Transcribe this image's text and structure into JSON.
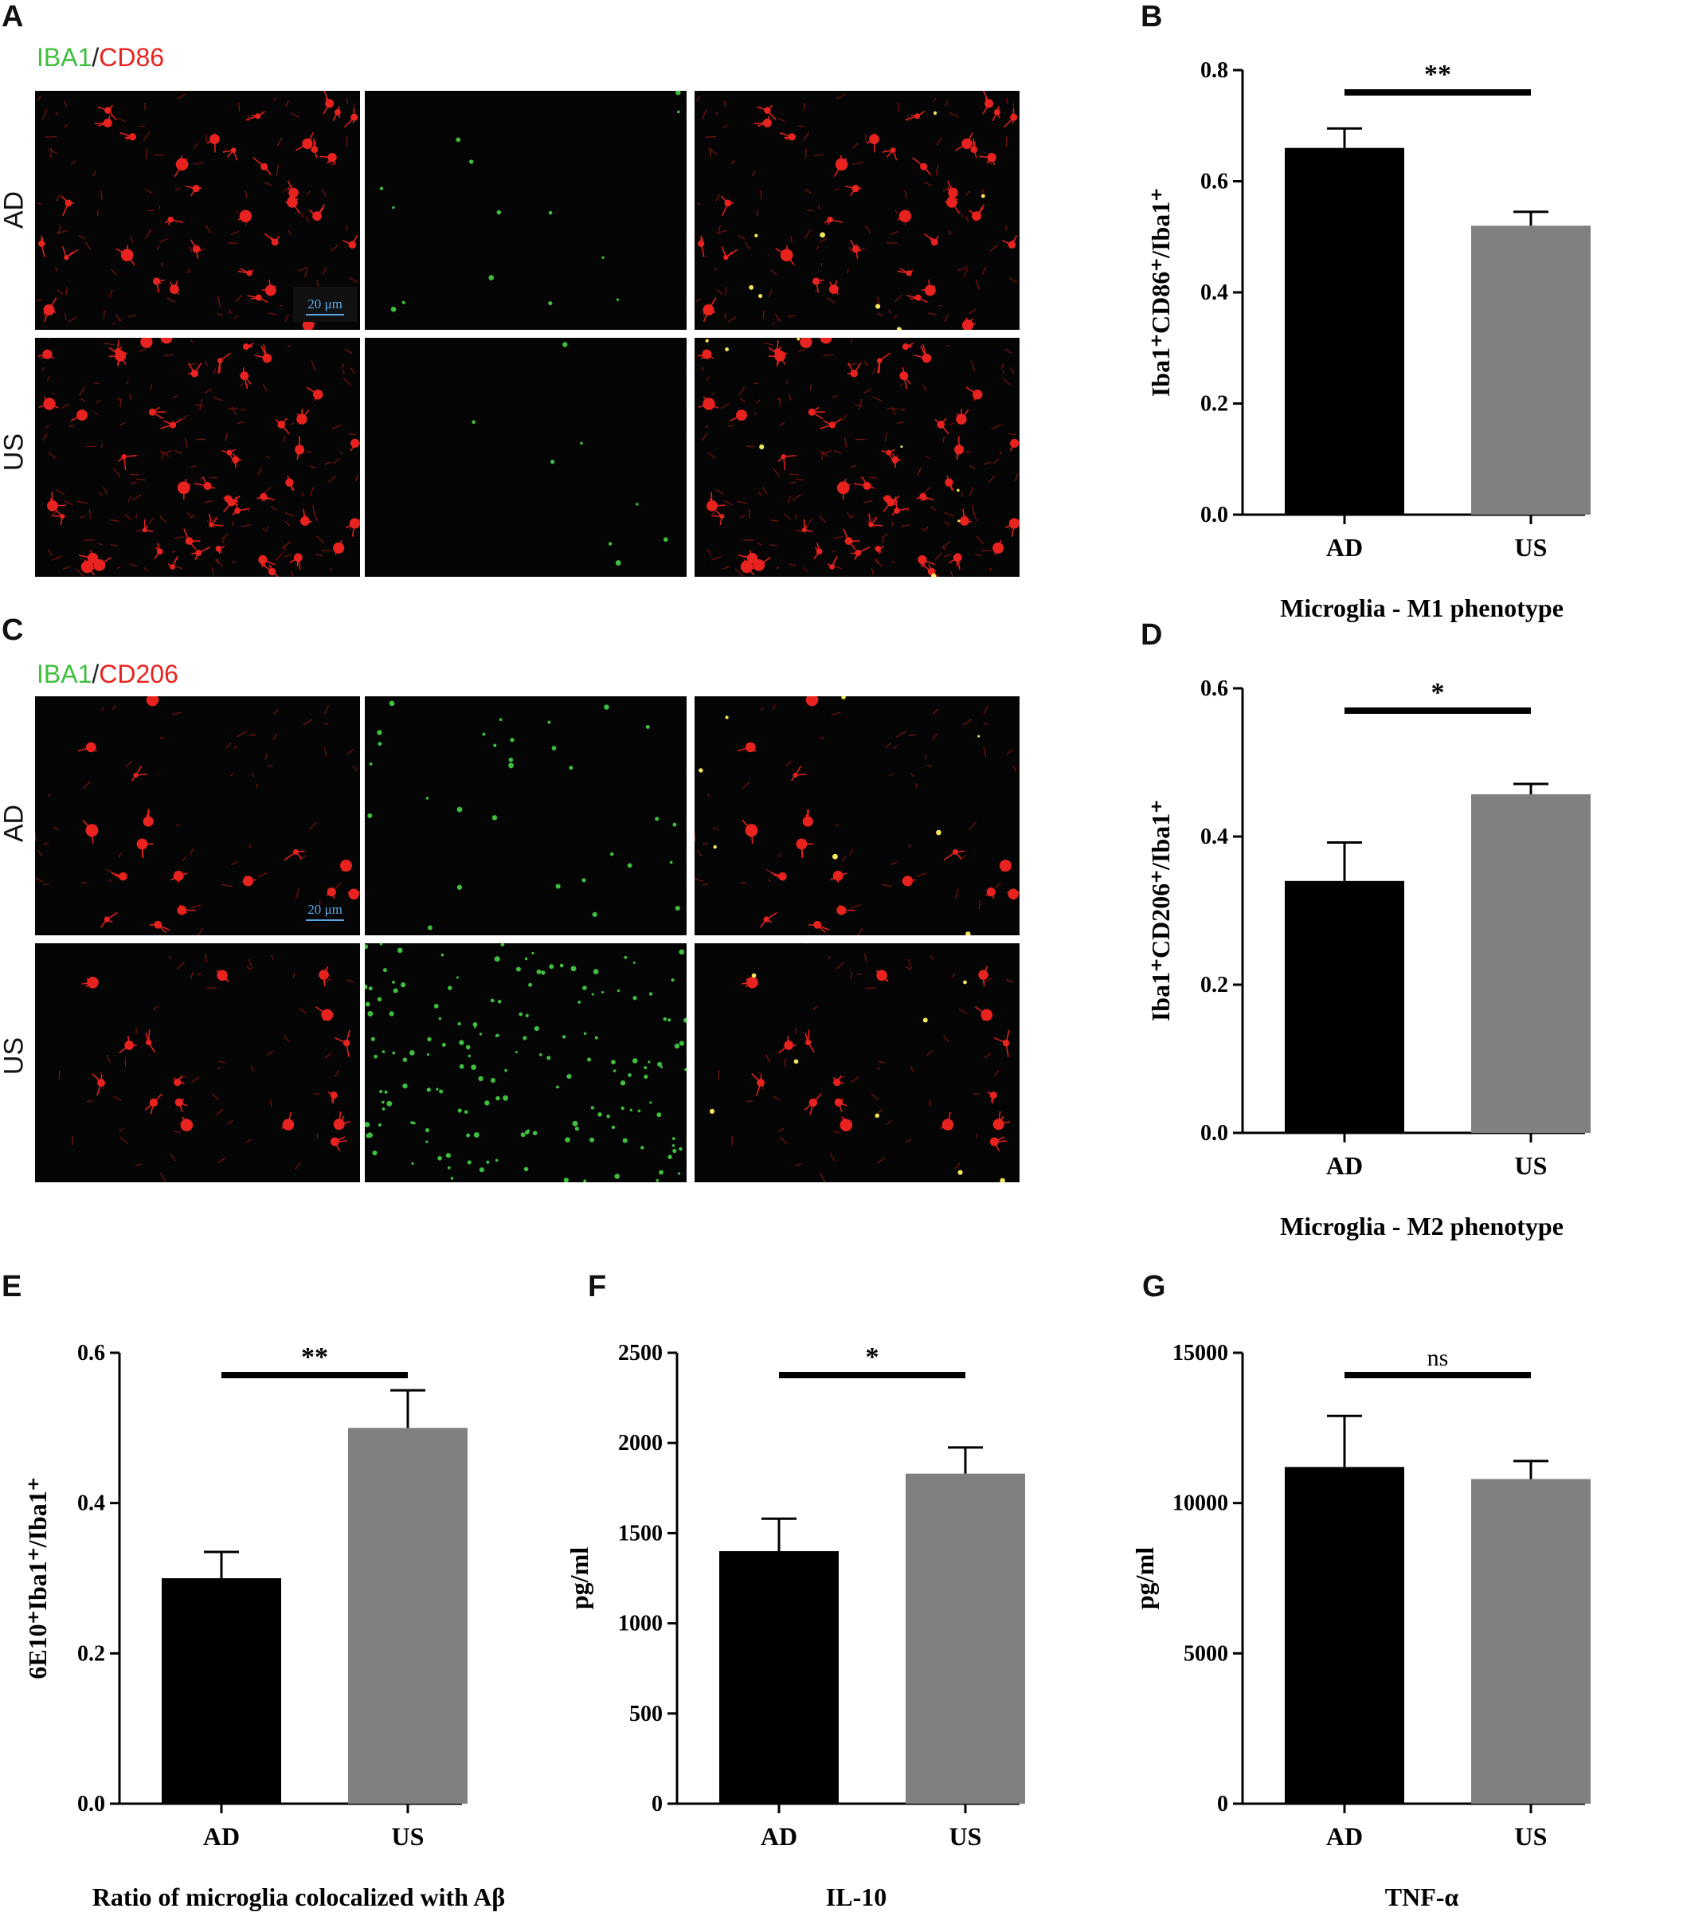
{
  "panels": {
    "A": {
      "letter": "A",
      "stain_green": "IBA1",
      "stain_sep": "/",
      "stain_red": "CD86",
      "rows": [
        "AD",
        "US"
      ],
      "scale_bar": "20 μm"
    },
    "B": {
      "letter": "B"
    },
    "C": {
      "letter": "C",
      "stain_green": "IBA1",
      "stain_sep": "/",
      "stain_red": "CD206",
      "rows": [
        "AD",
        "US"
      ],
      "scale_bar": "20 μm"
    },
    "D": {
      "letter": "D"
    },
    "E": {
      "letter": "E"
    },
    "F": {
      "letter": "F"
    },
    "G": {
      "letter": "G"
    }
  },
  "colors": {
    "ad_bar": "#000000",
    "us_bar": "#808080",
    "green_stain": "#3fbf3f",
    "red_stain": "#e8231f"
  },
  "chart_data": [
    {
      "id": "B",
      "type": "bar",
      "categories": [
        "AD",
        "US"
      ],
      "values": [
        0.66,
        0.52
      ],
      "errors": [
        0.035,
        0.025
      ],
      "ylabel": "Iba1⁺CD86⁺/Iba1⁺",
      "xlabel": "Microglia - M1 phenotype",
      "ylim": [
        0,
        0.8
      ],
      "yticks": [
        "0.0",
        "0.2",
        "0.4",
        "0.6",
        "0.8"
      ],
      "significance": "**"
    },
    {
      "id": "D",
      "type": "bar",
      "categories": [
        "AD",
        "US"
      ],
      "values": [
        0.34,
        0.457
      ],
      "errors": [
        0.052,
        0.014
      ],
      "ylabel": "Iba1⁺CD206⁺/Iba1⁺",
      "xlabel": "Microglia - M2 phenotype",
      "ylim": [
        0,
        0.6
      ],
      "yticks": [
        "0.0",
        "0.2",
        "0.4",
        "0.6"
      ],
      "significance": "*"
    },
    {
      "id": "E",
      "type": "bar",
      "categories": [
        "AD",
        "US"
      ],
      "values": [
        0.3,
        0.5
      ],
      "errors": [
        0.035,
        0.05
      ],
      "ylabel": "6E10⁺Iba1⁺/Iba1⁺",
      "xlabel": "Ratio of microglia colocalized with Aβ",
      "ylim": [
        0,
        0.6
      ],
      "yticks": [
        "0.0",
        "0.2",
        "0.4",
        "0.6"
      ],
      "significance": "**"
    },
    {
      "id": "F",
      "type": "bar",
      "categories": [
        "AD",
        "US"
      ],
      "values": [
        1400,
        1830
      ],
      "errors": [
        180,
        145
      ],
      "ylabel": "pg/ml",
      "xlabel": "IL-10",
      "ylim": [
        0,
        2500
      ],
      "yticks": [
        "0",
        "500",
        "1000",
        "1500",
        "2000",
        "2500"
      ],
      "significance": "*"
    },
    {
      "id": "G",
      "type": "bar",
      "categories": [
        "AD",
        "US"
      ],
      "values": [
        11200,
        10800
      ],
      "errors": [
        1700,
        600
      ],
      "ylabel": "pg/ml",
      "xlabel": "TNF-α",
      "ylim": [
        0,
        15000
      ],
      "yticks": [
        "0",
        "5000",
        "10000",
        "15000"
      ],
      "significance": "ns"
    }
  ]
}
